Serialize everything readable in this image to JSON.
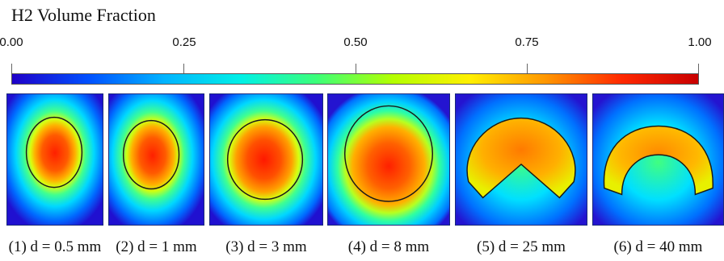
{
  "legend": {
    "title": "H2 Volume Fraction",
    "ticks": [
      "0.00",
      "0.25",
      "0.50",
      "0.75",
      "1.00"
    ],
    "tick_values": [
      0,
      0.25,
      0.5,
      0.75,
      1.0
    ],
    "colormap": [
      "#1f00c8",
      "#0050ff",
      "#00b4ff",
      "#00f0e6",
      "#3cff78",
      "#b4ff00",
      "#fff000",
      "#ff9600",
      "#ff2800",
      "#c80000"
    ]
  },
  "panels": [
    {
      "caption": "(1) d = 0.5 mm",
      "shape": "ellipse"
    },
    {
      "caption": "(2) d = 1 mm",
      "shape": "ellipse"
    },
    {
      "caption": "(3) d = 3 mm",
      "shape": "ellipse"
    },
    {
      "caption": "(4) d = 8 mm",
      "shape": "dome"
    },
    {
      "caption": "(5) d = 25 mm",
      "shape": "chevron"
    },
    {
      "caption": "(6) d = 40 mm",
      "shape": "arc"
    }
  ]
}
